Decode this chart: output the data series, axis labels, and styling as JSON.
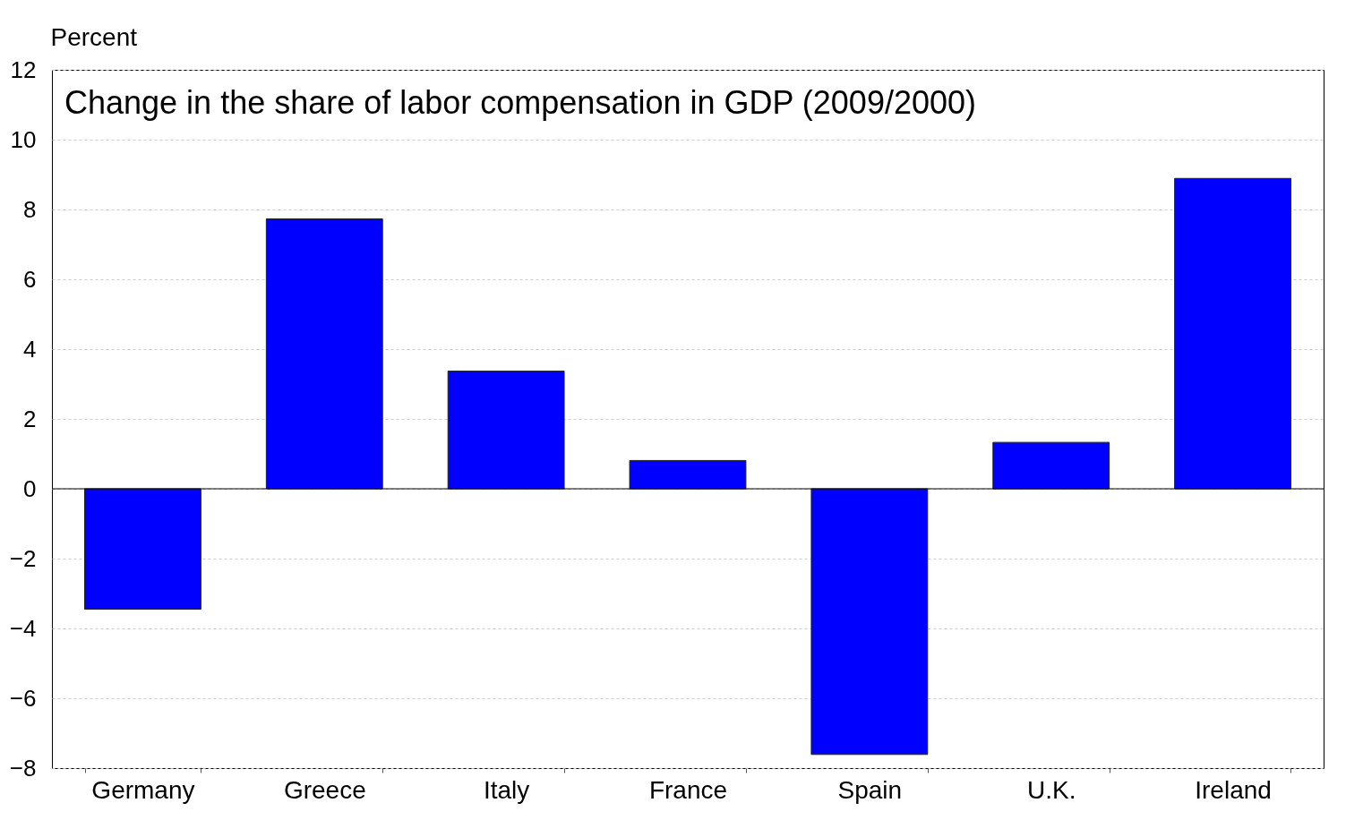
{
  "chart_data": {
    "type": "bar",
    "title": "Change in the share of labor compensation in GDP (2009/2000)",
    "ylabel": "Percent",
    "categories": [
      "Germany",
      "Greece",
      "Italy",
      "France",
      "Spain",
      "U.K.",
      "Ireland"
    ],
    "values": [
      -3.45,
      7.73,
      3.37,
      0.81,
      -7.61,
      1.33,
      8.89
    ],
    "color": "#0000ff",
    "ylim": [
      -8,
      12
    ],
    "yticks": [
      -8,
      -6,
      -4,
      -2,
      0,
      2,
      4,
      6,
      8,
      10,
      12
    ],
    "grid": "y"
  }
}
